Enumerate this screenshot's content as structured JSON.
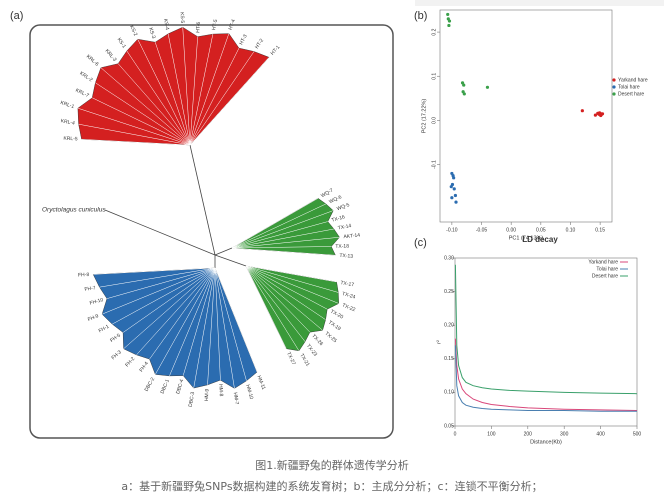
{
  "figure": {
    "caption": "图1.新疆野兔的群体遗传学分析",
    "description": "a：基于新疆野兔SNPs数据构建的系统发育树；b：主成分分析；c：连锁不平衡分析；"
  },
  "chart_data": [
    {
      "type": "tree",
      "panel": "(a)",
      "outgroup": "Oryctolagus cuniculus",
      "clades": [
        {
          "color": "#d42020",
          "leaves": [
            "KRL-5",
            "KRL-4",
            "KRL-1",
            "KRL-7",
            "KRL-2",
            "KRL-6",
            "KRL-3",
            "KS-1",
            "KS-2",
            "KS-3",
            "KS-4",
            "KS-5",
            "HT-6",
            "HT-5",
            "HT-4",
            "HT-3",
            "HT-2",
            "HT-1"
          ]
        },
        {
          "color": "#3a9a3a",
          "leaves": [
            "WQ-7",
            "WQ-6",
            "WQ-5",
            "TX-16",
            "TX-14",
            "AKT-14",
            "TX-18",
            "TX-13"
          ]
        },
        {
          "color": "#3a9a3a",
          "leaves": [
            "TX-17",
            "TX-24",
            "TX-22",
            "TX-20",
            "TX-19",
            "TX-25",
            "TX-26",
            "TX-23",
            "TX-21",
            "TX-27"
          ]
        },
        {
          "color": "#2b6cb0",
          "leaves": [
            "HM-11",
            "HM-10",
            "HM-7",
            "HM-8",
            "HM-9",
            "DBC-3",
            "DBC-4",
            "DBC-1",
            "DBC-2",
            "FH-4",
            "FH-2",
            "FH-3",
            "FH-5",
            "FH-1",
            "FH-9",
            "FH-10",
            "FH-7",
            "FH-8"
          ]
        }
      ]
    },
    {
      "type": "scatter",
      "panel": "(b)",
      "xlabel": "PC1 (74.13%)",
      "ylabel": "PC2 (17.22%)",
      "xlim": [
        -0.12,
        0.17
      ],
      "xticks": [
        {
          "value": -0.1,
          "label": "-0.10"
        },
        -0.05,
        {
          "value": 0,
          "label": "0.00"
        },
        0.05,
        {
          "value": 0.1,
          "label": "0.10"
        },
        0.15
      ],
      "ylim": [
        -0.23,
        0.25
      ],
      "yticks": [
        0.2,
        0.1,
        {
          "value": 0,
          "label": "0.0"
        },
        -0.1
      ],
      "series": [
        {
          "name": "Yarkand hare",
          "color": "#d42020",
          "x": [
            0.12,
            0.142,
            0.146,
            0.148,
            0.15,
            0.152,
            0.154,
            0.149,
            0.151
          ],
          "values": [
            0.022,
            0.012,
            0.016,
            0.014,
            0.016,
            0.013,
            0.015,
            0.017,
            0.011
          ]
        },
        {
          "name": "Tolai hare",
          "color": "#2b6cb0",
          "x": [
            -0.1,
            -0.098,
            -0.097,
            -0.099,
            -0.101,
            -0.096,
            -0.094,
            -0.1,
            -0.093
          ],
          "values": [
            -0.12,
            -0.125,
            -0.13,
            -0.145,
            -0.15,
            -0.155,
            -0.17,
            -0.175,
            -0.185
          ]
        },
        {
          "name": "Desert hare",
          "color": "#3aa04a",
          "x": [
            -0.107,
            -0.106,
            -0.104,
            -0.105,
            -0.082,
            -0.08,
            -0.081,
            -0.079,
            -0.04
          ],
          "values": [
            0.24,
            0.23,
            0.225,
            0.215,
            0.085,
            0.08,
            0.065,
            0.06,
            0.075
          ]
        }
      ]
    },
    {
      "type": "line",
      "panel": "(c)",
      "title": "LD decay",
      "xlabel": "Distance(Kb)",
      "ylabel": "r²",
      "xlim": [
        0,
        500
      ],
      "xticks": [
        0,
        100,
        200,
        300,
        400,
        500
      ],
      "ylim": [
        0.05,
        0.3
      ],
      "yticks": [
        0.05,
        {
          "value": 0.1,
          "label": "0.10"
        },
        0.15,
        {
          "value": 0.2,
          "label": "0.20"
        },
        0.25,
        {
          "value": 0.3,
          "label": "0.30"
        }
      ],
      "x": [
        1,
        5,
        10,
        20,
        30,
        50,
        75,
        100,
        150,
        200,
        300,
        400,
        500
      ],
      "series": [
        {
          "name": "Yarkand hare",
          "color": "#d9477a",
          "values": [
            0.18,
            0.14,
            0.12,
            0.105,
            0.098,
            0.09,
            0.085,
            0.082,
            0.079,
            0.077,
            0.075,
            0.074,
            0.073
          ]
        },
        {
          "name": "Tolai hare",
          "color": "#4a7fb0",
          "values": [
            0.17,
            0.11,
            0.095,
            0.085,
            0.081,
            0.078,
            0.076,
            0.075,
            0.074,
            0.073,
            0.073,
            0.072,
            0.072
          ]
        },
        {
          "name": "Desert hare",
          "color": "#3aa06b",
          "values": [
            0.29,
            0.17,
            0.14,
            0.122,
            0.115,
            0.11,
            0.107,
            0.105,
            0.103,
            0.102,
            0.1,
            0.099,
            0.098
          ]
        }
      ]
    }
  ]
}
